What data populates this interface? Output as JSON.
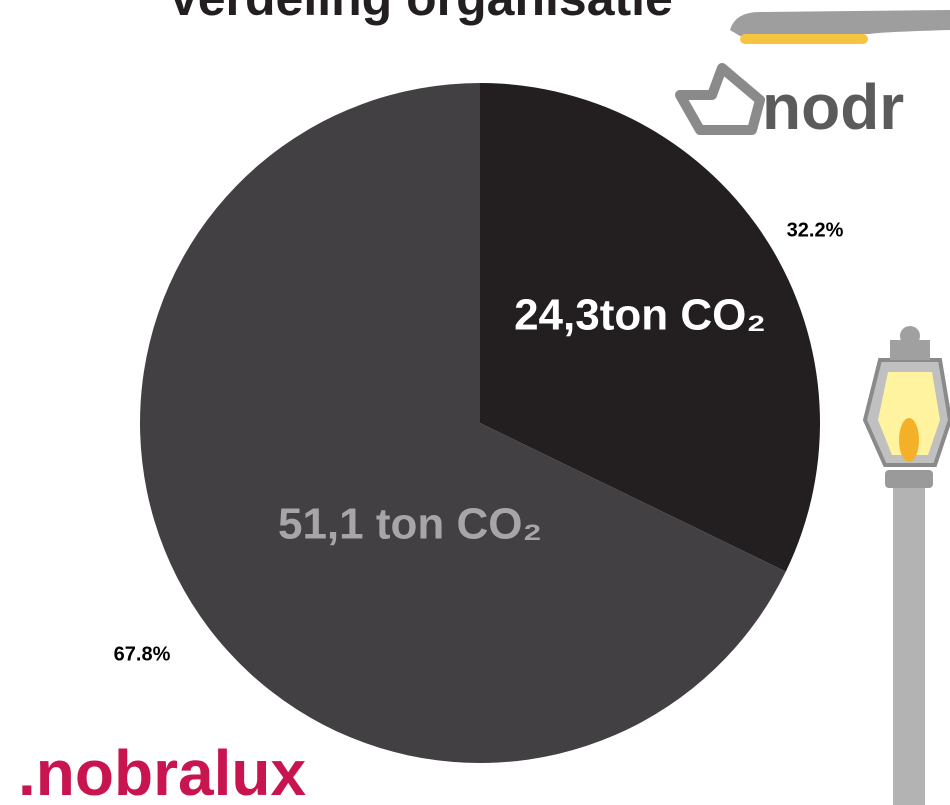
{
  "chart_data": {
    "type": "pie",
    "title": "Verdeling organisatie",
    "categories": [
      "24,3ton CO₂",
      "51,1 ton CO₂"
    ],
    "values": [
      32.2,
      67.8
    ],
    "value_labels": [
      "32.2%",
      "67.8%"
    ],
    "colors": [
      "#231f20",
      "#434043"
    ],
    "label_colors": [
      "#ffffff",
      "#a7a5a6"
    ]
  },
  "logos": {
    "top": "nodr",
    "bottom": ".nobralux"
  }
}
